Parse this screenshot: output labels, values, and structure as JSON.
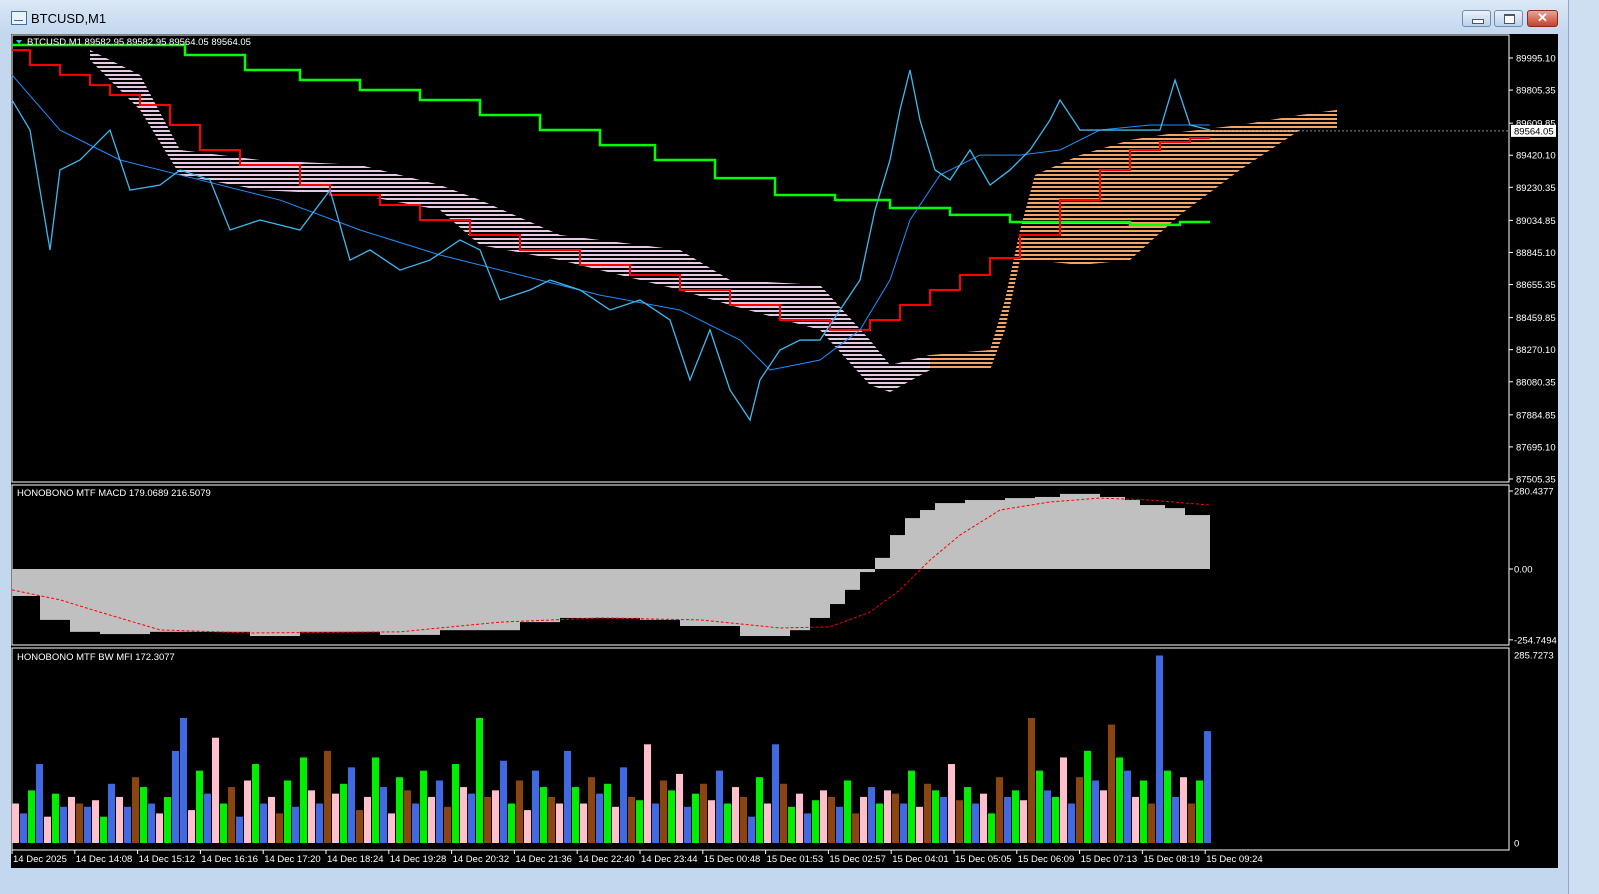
{
  "window": {
    "title": "BTCUSD,M1",
    "buttons": [
      "minimize",
      "maximize",
      "close"
    ]
  },
  "main_pane": {
    "legend": "BTCUSD,M1  89582.95 89582.95 89564.05 89564.05",
    "current_price_label": "89564.05",
    "current_price": 89564.05,
    "price_ticks": [
      "89995.10",
      "89805.35",
      "89609.85",
      "89420.10",
      "89230.35",
      "89034.85",
      "88845.10",
      "88655.35",
      "88459.85",
      "88270.10",
      "88080.35",
      "87884.85",
      "87695.10",
      "87505.35"
    ]
  },
  "macd_pane": {
    "label": "HONOBONO MTF MACD 179.0689 216.5079",
    "ticks": [
      "280.4377",
      "0.00",
      "-254.7494"
    ]
  },
  "mfi_pane": {
    "label": "HONOBONO MTF BW MFI 172.3077",
    "ticks": [
      "285.7273",
      "0"
    ]
  },
  "time_ticks": [
    "14 Dec 2025",
    "14 Dec 14:08",
    "14 Dec 15:12",
    "14 Dec 16:16",
    "14 Dec 17:20",
    "14 Dec 18:24",
    "14 Dec 19:28",
    "14 Dec 20:32",
    "14 Dec 21:36",
    "14 Dec 22:40",
    "14 Dec 23:44",
    "15 Dec 00:48",
    "15 Dec 01:53",
    "15 Dec 02:57",
    "15 Dec 04:01",
    "15 Dec 05:05",
    "15 Dec 06:09",
    "15 Dec 07:13",
    "15 Dec 08:19",
    "15 Dec 09:24"
  ],
  "colors": {
    "price": "#3fb8f0",
    "ma": "#1e90ff",
    "tenkan_red": "#ff0000",
    "green_line": "#00ff00",
    "cloud_bear": "#e6c8e6",
    "cloud_bull": "#f4a460",
    "macd_hist": "#c0c0c0",
    "macd_signal": "#ff0000",
    "mfi": {
      "G": "#00ee00",
      "B": "#4169e1",
      "P": "#ffc0cb",
      "R": "#8b4513"
    }
  },
  "chart_data": {
    "type": "line",
    "x_unit": "M1 bars",
    "price": {
      "bars": [
        0,
        18,
        38,
        48,
        68,
        98,
        118,
        148,
        168,
        198,
        218,
        248,
        288,
        318,
        338,
        358,
        388,
        418,
        448,
        468,
        488,
        518,
        538,
        568,
        598,
        628,
        658,
        678,
        698,
        718,
        738,
        748,
        768,
        788,
        808,
        828,
        848,
        863,
        878,
        888,
        898,
        908,
        923,
        938,
        958,
        978,
        998,
        1018,
        1038,
        1048,
        1068,
        1088,
        1118,
        1148,
        1163,
        1178,
        1198
      ],
      "values": [
        89747,
        89569,
        88860,
        89333,
        89392,
        89569,
        89214,
        89244,
        89333,
        89274,
        88978,
        89037,
        88978,
        89214,
        88800,
        88860,
        88741,
        88800,
        88919,
        88860,
        88564,
        88623,
        88682,
        88623,
        88505,
        88564,
        88446,
        88091,
        88387,
        88032,
        87854,
        88091,
        88268,
        88327,
        88327,
        88505,
        88682,
        89096,
        89392,
        89688,
        89924,
        89628,
        89333,
        89274,
        89451,
        89244,
        89333,
        89451,
        89628,
        89747,
        89569,
        89569,
        89569,
        89569,
        89865,
        89599,
        89569
      ]
    },
    "moving_average": {
      "bars": [
        0,
        48,
        108,
        188,
        268,
        348,
        428,
        508,
        588,
        668,
        728,
        758,
        808,
        848,
        878,
        898,
        928,
        968,
        1008,
        1048,
        1088,
        1138,
        1198
      ],
      "values": [
        89895,
        89569,
        89392,
        89274,
        89155,
        88978,
        88830,
        88712,
        88593,
        88505,
        88327,
        88150,
        88209,
        88387,
        88682,
        89037,
        89303,
        89421,
        89421,
        89451,
        89569,
        89599,
        89599
      ]
    },
    "red_step_line": {
      "bars": [
        0,
        18,
        48,
        78,
        98,
        128,
        158,
        188,
        228,
        288,
        318,
        368,
        408,
        458,
        508,
        568,
        618,
        668,
        718,
        768,
        818,
        858,
        888,
        918,
        948,
        978,
        1008,
        1048,
        1088,
        1118,
        1148,
        1178
      ],
      "values": [
        90042,
        89954,
        89895,
        89835,
        89776,
        89717,
        89599,
        89451,
        89362,
        89244,
        89185,
        89126,
        89037,
        88948,
        88860,
        88771,
        88712,
        88623,
        88534,
        88446,
        88387,
        88446,
        88534,
        88623,
        88712,
        88812,
        88948,
        89155,
        89333,
        89451,
        89498,
        89522
      ],
      "end_bar": 1198
    },
    "green_step_line": {
      "bars": [
        0,
        173,
        233,
        288,
        348,
        408,
        468,
        528,
        588,
        643,
        703,
        763,
        823,
        878,
        938,
        998,
        1118,
        1168
      ],
      "values": [
        90072,
        90013,
        89924,
        89865,
        89806,
        89747,
        89658,
        89569,
        89480,
        89392,
        89285,
        89185,
        89155,
        89108,
        89067,
        89025,
        89008,
        89025
      ],
      "end_bar": 1198
    },
    "cloud": {
      "bars": [
        78,
        128,
        168,
        248,
        348,
        428,
        468,
        548,
        668,
        718,
        808,
        858,
        878,
        918,
        978,
        993,
        1008,
        1023,
        1068,
        1118,
        1168,
        1228,
        1288,
        1325
      ],
      "span_a": [
        90042,
        89895,
        89451,
        89392,
        89362,
        89244,
        89155,
        88948,
        88860,
        88682,
        88653,
        88327,
        88179,
        88239,
        88268,
        88564,
        88978,
        89303,
        89421,
        89510,
        89557,
        89599,
        89658,
        89688
      ],
      "span_b": [
        89983,
        89688,
        89303,
        89214,
        89185,
        89096,
        88889,
        88800,
        88623,
        88534,
        88387,
        88061,
        88020,
        88150,
        88150,
        88387,
        88800,
        88800,
        88771,
        88800,
        89067,
        89333,
        89569,
        89581
      ],
      "bearish_until_bar": 900
    },
    "y_range": [
      87505.35,
      89995.1
    ],
    "macd": {
      "hist_bars": [
        0,
        28,
        58,
        88,
        138,
        238,
        288,
        368,
        428,
        508,
        548,
        628,
        668,
        728,
        778,
        798,
        818,
        833,
        848,
        863,
        878,
        893,
        908,
        923,
        953,
        993,
        1023,
        1048,
        1088,
        1113,
        1128,
        1153,
        1173
      ],
      "hist_values": [
        -97,
        -183,
        -226,
        -234,
        -226,
        -241,
        -226,
        -237,
        -220,
        -191,
        -176,
        -183,
        -205,
        -241,
        -220,
        -176,
        -126,
        -75,
        -11,
        40,
        122,
        183,
        212,
        237,
        248,
        255,
        259,
        270,
        259,
        248,
        230,
        219,
        194
      ],
      "hist_end_bar": 1198,
      "signal_bars": [
        0,
        48,
        88,
        148,
        238,
        388,
        488,
        588,
        688,
        768,
        818,
        858,
        888,
        918,
        948,
        988,
        1038,
        1088,
        1138,
        1198
      ],
      "signal_values": [
        -75,
        -111,
        -155,
        -219,
        -230,
        -226,
        -191,
        -176,
        -183,
        -212,
        -208,
        -155,
        -75,
        32,
        122,
        212,
        241,
        255,
        248,
        230
      ],
      "y_range": [
        -254.7494,
        280.4377
      ]
    },
    "mfi": {
      "values": [
        60,
        45,
        80,
        120,
        40,
        75,
        55,
        70,
        60,
        55,
        65,
        40,
        90,
        70,
        55,
        100,
        85,
        60,
        45,
        70,
        140,
        190,
        50,
        110,
        75,
        160,
        60,
        85,
        40,
        95,
        120,
        60,
        70,
        45,
        95,
        55,
        130,
        80,
        60,
        140,
        75,
        90,
        115,
        50,
        70,
        130,
        85,
        45,
        100,
        80,
        60,
        110,
        70,
        95,
        55,
        120,
        85,
        75,
        190,
        70,
        80,
        125,
        60,
        95,
        50,
        110,
        85,
        70,
        60,
        140,
        85,
        60,
        100,
        75,
        90,
        55,
        115,
        70,
        65,
        150,
        60,
        95,
        80,
        105,
        55,
        75,
        90,
        65,
        110,
        60,
        85,
        70,
        40,
        100,
        60,
        150,
        90,
        55,
        75,
        45,
        65,
        80,
        70,
        55,
        95,
        45,
        70,
        85,
        60,
        80,
        75,
        60,
        110,
        55,
        90,
        80,
        70,
        120,
        65,
        85,
        60,
        75,
        45,
        100,
        70,
        80,
        65,
        190,
        110,
        80,
        70,
        130,
        60,
        100,
        140,
        95,
        80,
        180,
        130,
        110,
        70,
        95,
        60,
        285,
        110,
        70,
        100,
        60,
        95,
        170
      ],
      "colors": "PBGBPGBPRBPGBPBRGBPGBBPGBPGRBPGBPRGBGPBRPGBRPGBPGRBGPBRGPBGRPBGRPBGRPBGPRBGPBRGPBRGPBGRPBGPRBGPBRGPBGPRBGRPBGPRBGPRGBPRGBPGRBGPRGBGPBRGBPRGBPGRBGBPRGB",
      "y_range": [
        0,
        285.7273
      ]
    }
  }
}
